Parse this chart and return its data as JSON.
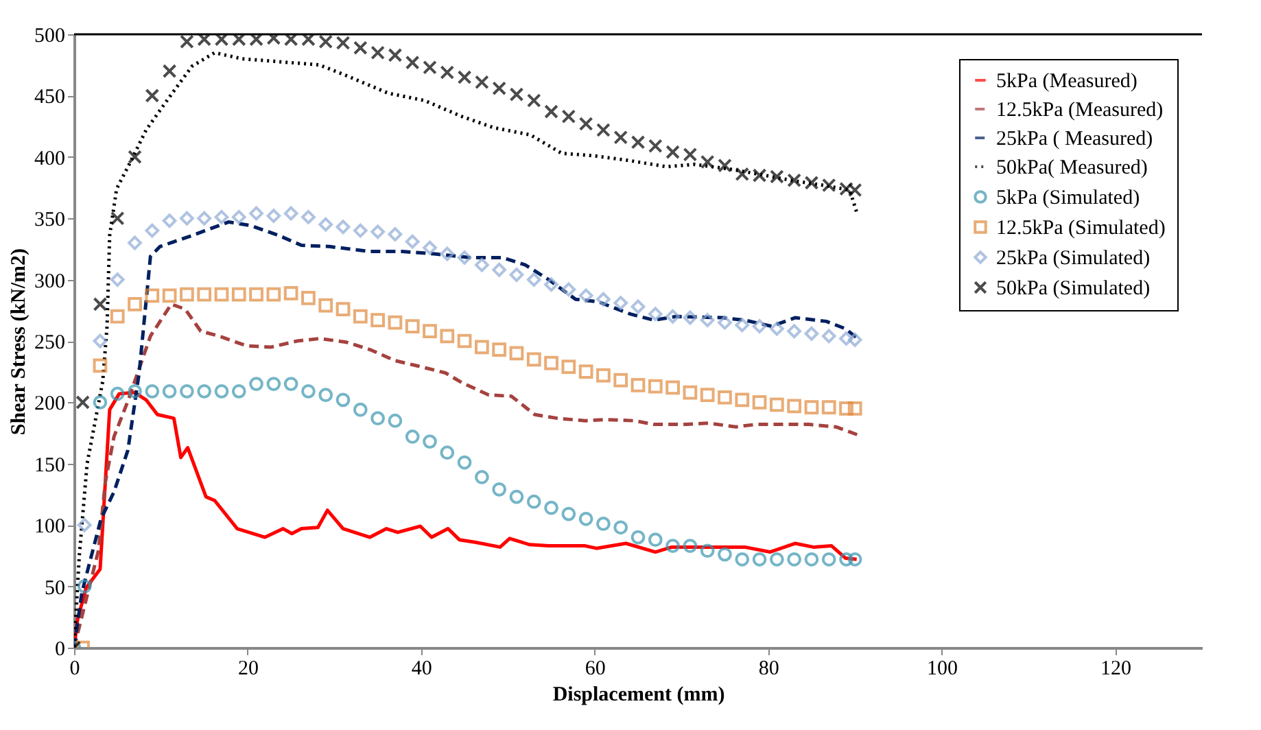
{
  "chart_data": {
    "type": "line",
    "xlabel": "Displacement (mm)",
    "ylabel": "Shear Stress (kN/m2)",
    "xlim": [
      0,
      130
    ],
    "xticks": [
      0,
      20,
      40,
      60,
      80,
      100,
      120
    ],
    "ylim": [
      0,
      500
    ],
    "yticks": [
      0,
      50,
      100,
      150,
      200,
      250,
      300,
      350,
      400,
      450,
      500
    ],
    "legend": "top right",
    "series": [
      {
        "name": "5kPa (Measured)",
        "type": "line",
        "line_style": "solid",
        "color": "#ff0000",
        "x": [
          0,
          0.4,
          1.4,
          3.0,
          4.1,
          5.2,
          7.0,
          8.3,
          9.6,
          11.5,
          12.3,
          13.1,
          15.2,
          16.2,
          18.8,
          22,
          24.1,
          25.1,
          26.2,
          28.1,
          29.2,
          31,
          34.1,
          36,
          37.3,
          39.9,
          41.2,
          43.1,
          44.4,
          46.2,
          49.1,
          50.2,
          52.5,
          54.7,
          58.9,
          60.2,
          63.6,
          67,
          68.9,
          77.3,
          80.2,
          83.1,
          85.2,
          87.3,
          88.9,
          90.2
        ],
        "values": [
          0,
          23,
          49,
          64,
          194,
          207,
          208,
          202,
          190,
          187,
          155,
          163,
          123,
          120,
          97,
          90,
          97,
          93,
          97,
          98,
          112,
          97,
          90,
          97,
          94,
          99,
          90,
          97,
          88,
          86,
          82,
          89,
          84,
          83,
          83,
          81,
          85,
          78,
          82,
          82,
          78,
          85,
          82,
          83,
          73,
          72
        ]
      },
      {
        "name": "12.5kPa (Measured)",
        "type": "line",
        "line_style": "dashed",
        "color": "#a5423f",
        "x": [
          0,
          2.8,
          3.6,
          4.6,
          6.2,
          8.8,
          11.2,
          12.8,
          14.6,
          16.7,
          19.9,
          22.7,
          25.7,
          28.3,
          31.4,
          34.1,
          37,
          39.4,
          42.8,
          44.7,
          47.8,
          50.4,
          53.1,
          55.7,
          58.9,
          61.2,
          64.6,
          66.8,
          70.5,
          73.1,
          76.3,
          78.6,
          82,
          84.7,
          87.8,
          90.5
        ],
        "values": [
          0,
          79,
          135,
          172,
          201,
          254,
          280,
          276,
          258,
          254,
          246,
          245,
          250,
          252,
          249,
          243,
          234,
          230,
          224,
          216,
          206,
          205,
          190,
          187,
          185,
          186,
          185,
          182,
          182,
          183,
          180,
          182,
          182,
          182,
          180,
          173
        ]
      },
      {
        "name": "25kPa ( Measured)",
        "type": "line",
        "line_style": "dashed",
        "color": "#002060",
        "x": [
          0,
          0.9,
          3.1,
          4.6,
          6.2,
          7.5,
          8.8,
          9.9,
          13.6,
          17.8,
          20.4,
          23.6,
          26.2,
          29.4,
          34.1,
          37.8,
          41.5,
          45.7,
          49.4,
          52,
          54.7,
          57.8,
          60.4,
          64.1,
          66.8,
          69.4,
          74.7,
          77.3,
          80.4,
          83.1,
          86.7,
          88.9,
          90.5
        ],
        "values": [
          0,
          45,
          105,
          127,
          161,
          224,
          319,
          327,
          336,
          347,
          344,
          336,
          328,
          327,
          323,
          323,
          321,
          318,
          318,
          312,
          300,
          284,
          282,
          272,
          267,
          270,
          269,
          267,
          262,
          269,
          266,
          260,
          251
        ]
      },
      {
        "name": "50kPa( Measured)",
        "type": "line",
        "line_style": "dotted",
        "color": "#000000",
        "x": [
          0,
          0.6,
          1.5,
          3.3,
          3.8,
          4.1,
          4.9,
          6.5,
          8.3,
          10.9,
          13.6,
          16.2,
          19.4,
          23.1,
          28.3,
          31.5,
          36.2,
          40.4,
          44.7,
          48.3,
          52.6,
          56.2,
          59.9,
          64.1,
          68.3,
          71.5,
          75.7,
          78.9,
          82.6,
          86.3,
          89.4,
          90.2
        ],
        "values": [
          0,
          75,
          150,
          217,
          262,
          336,
          374,
          396,
          422,
          448,
          474,
          485,
          480,
          478,
          475,
          466,
          452,
          446,
          433,
          424,
          418,
          403,
          401,
          397,
          392,
          394,
          390,
          386,
          381,
          377,
          373,
          355
        ]
      },
      {
        "name": "5kPa (Simulated)",
        "type": "scatter",
        "marker": "circle",
        "color": "#3b96b0",
        "x": [
          0,
          1.2,
          3,
          5,
          7,
          9,
          11,
          13,
          15,
          17,
          19,
          21,
          23,
          25,
          27,
          29,
          31,
          33,
          35,
          37,
          39,
          41,
          43,
          45,
          47,
          49,
          51,
          53,
          55,
          57,
          59,
          61,
          63,
          65,
          67,
          69,
          71,
          73,
          75,
          77,
          79,
          81,
          83,
          85,
          87,
          89,
          90
        ],
        "values": [
          0,
          50,
          200,
          207,
          209,
          209,
          209,
          209,
          209,
          209,
          209,
          215,
          215,
          215,
          209,
          206,
          202,
          194,
          187,
          185,
          172,
          168,
          159,
          151,
          139,
          129,
          123,
          119,
          114,
          109,
          105,
          101,
          98,
          90,
          88,
          83,
          83,
          79,
          76,
          72,
          72,
          72,
          72,
          72,
          72,
          72,
          72
        ]
      },
      {
        "name": "12.5kPa (Simulated)",
        "type": "scatter",
        "marker": "square",
        "color": "#e0893d",
        "x": [
          1,
          3,
          5,
          7,
          9,
          11,
          13,
          15,
          17,
          19,
          21,
          23,
          25,
          27,
          29,
          31,
          33,
          35,
          37,
          39,
          41,
          43,
          45,
          47,
          49,
          51,
          53,
          55,
          57,
          59,
          61,
          63,
          65,
          67,
          69,
          71,
          73,
          75,
          77,
          79,
          81,
          83,
          85,
          87,
          89,
          90
        ],
        "values": [
          0,
          230,
          270,
          280,
          287,
          287,
          288,
          288,
          288,
          288,
          288,
          288,
          289,
          285,
          279,
          276,
          270,
          267,
          265,
          262,
          258,
          254,
          250,
          245,
          243,
          240,
          235,
          232,
          229,
          225,
          222,
          218,
          214,
          213,
          212,
          208,
          206,
          204,
          202,
          200,
          198,
          197,
          196,
          196,
          195,
          195
        ]
      },
      {
        "name": "25kPa (Simulated)",
        "type": "scatter",
        "marker": "diamond",
        "color": "#8eaad5",
        "x": [
          1.2,
          3,
          5,
          7,
          9,
          11,
          13,
          15,
          17,
          19,
          21,
          23,
          25,
          27,
          29,
          31,
          33,
          35,
          37,
          39,
          41,
          43,
          45,
          47,
          49,
          51,
          53,
          55,
          57,
          59,
          61,
          63,
          65,
          67,
          69,
          71,
          73,
          75,
          77,
          79,
          81,
          83,
          85,
          87,
          89,
          90
        ],
        "values": [
          100,
          250,
          300,
          330,
          340,
          348,
          350,
          350,
          351,
          351,
          354,
          352,
          354,
          351,
          345,
          343,
          340,
          339,
          337,
          331,
          326,
          321,
          318,
          312,
          308,
          304,
          300,
          296,
          292,
          287,
          284,
          281,
          278,
          272,
          270,
          269,
          267,
          265,
          263,
          262,
          260,
          258,
          256,
          254,
          252,
          251
        ]
      },
      {
        "name": "50kPa (Simulated)",
        "type": "scatter",
        "marker": "cross",
        "color": "#000000",
        "x": [
          0,
          1,
          3,
          5,
          7,
          9,
          11,
          13,
          15,
          17,
          19,
          21,
          23,
          25,
          27,
          29,
          31,
          33,
          35,
          37,
          39,
          41,
          43,
          45,
          47,
          49,
          51,
          53,
          55,
          57,
          59,
          61,
          63,
          65,
          67,
          69,
          71,
          73,
          75,
          77,
          79,
          81,
          83,
          85,
          87,
          89,
          90
        ],
        "values": [
          0,
          200,
          280,
          350,
          400,
          450,
          470,
          494,
          496,
          496,
          496,
          496,
          497,
          496,
          496,
          494,
          493,
          489,
          485,
          483,
          477,
          473,
          469,
          465,
          461,
          456,
          451,
          446,
          437,
          433,
          427,
          422,
          416,
          412,
          409,
          404,
          402,
          396,
          393,
          386,
          385,
          384,
          381,
          379,
          377,
          374,
          373
        ]
      }
    ]
  }
}
